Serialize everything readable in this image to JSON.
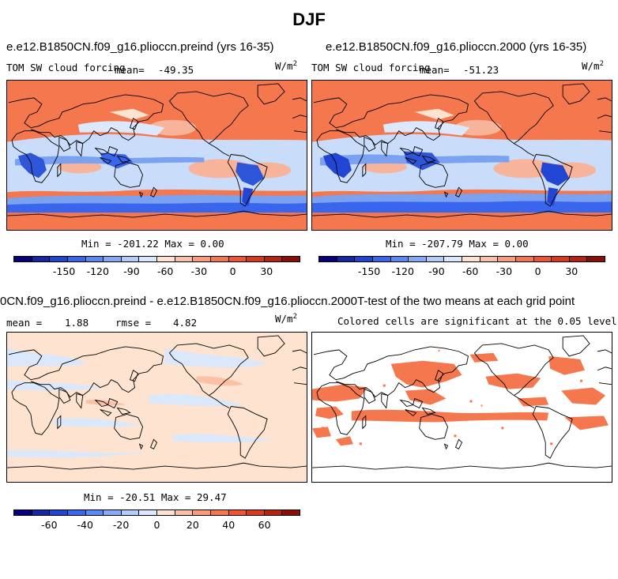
{
  "figure": {
    "title": "DJF"
  },
  "panels": {
    "top_left": {
      "title": "e.e12.B1850CN.f09_g16.plioccn.preind (yrs 16-35)",
      "variable": "TOM SW cloud forcing",
      "mean_label": "mean=",
      "mean_value": "-49.35",
      "units": "W/m",
      "units_sup": "2",
      "minmax": "Min = -201.22 Max =    0.00"
    },
    "top_right": {
      "title": "e.e12.B1850CN.f09_g16.plioccn.2000 (yrs 16-35)",
      "variable": "TOM SW cloud forcing",
      "mean_label": "mean=",
      "mean_value": "-51.23",
      "units": "W/m",
      "units_sup": "2",
      "minmax": "Min = -207.79 Max =    0.00"
    },
    "bottom_left": {
      "title": "0CN.f09_g16.plioccn.preind - e.e12.B1850CN.f09_g16.plioccn.2000",
      "mean_label": "mean =",
      "mean_value": "1.88",
      "rmse_label": "rmse =",
      "rmse_value": "4.82",
      "units": "W/m",
      "units_sup": "2",
      "minmax": "Min = -20.51 Max =  29.47"
    },
    "bottom_right": {
      "title": "T-test of the two means at each grid point",
      "subtitle": "Colored cells are significant at the 0.05 level"
    }
  },
  "colors": {
    "ocean_red": "#f4774d",
    "ocean_light_blue": "#c9ddfb",
    "ocean_mid_blue": "#7aa2f0",
    "deep_blue": "#2f55d8",
    "pink": "#f8b49a",
    "diff_peach": "#fde3d0",
    "diff_blue": "#dbe8fb",
    "sig_orange": "#f4774d"
  },
  "chart_data": [
    {
      "type": "colorbar",
      "name": "absolute",
      "tick_labels": [
        "-150",
        "-120",
        "-90",
        "-60",
        "-30",
        "0",
        "30"
      ],
      "tick_values": [
        -150,
        -120,
        -90,
        -60,
        -30,
        0,
        30
      ],
      "range": [
        -195,
        60
      ],
      "colors": [
        "#08007b",
        "#1526a6",
        "#2246d4",
        "#3a66ee",
        "#5a8af5",
        "#85abf8",
        "#b3cdfb",
        "#dbe8fd",
        "#fde3d0",
        "#fbc1a6",
        "#f89c7a",
        "#f6774f",
        "#ef5531",
        "#d93a1d",
        "#b52312",
        "#8c0f06"
      ]
    },
    {
      "type": "colorbar",
      "name": "difference",
      "tick_labels": [
        "-60",
        "-40",
        "-20",
        "0",
        "20",
        "40",
        "60"
      ],
      "tick_values": [
        -60,
        -40,
        -20,
        0,
        20,
        40,
        60
      ],
      "range": [
        -80,
        80
      ],
      "colors": [
        "#08007b",
        "#1526a6",
        "#2246d4",
        "#3a66ee",
        "#5a8af5",
        "#85abf8",
        "#b3cdfb",
        "#dbe8fd",
        "#fde3d0",
        "#fbc1a6",
        "#f89c7a",
        "#f6774f",
        "#ef5531",
        "#d93a1d",
        "#b52312",
        "#8c0f06"
      ]
    }
  ]
}
